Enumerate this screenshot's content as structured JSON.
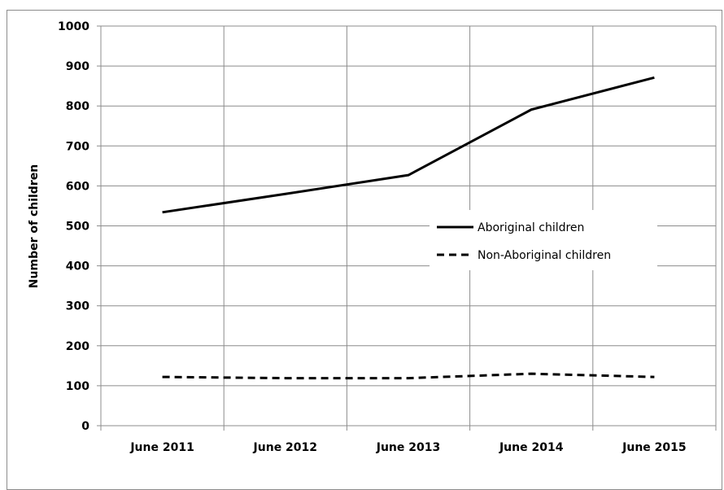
{
  "chart_data": {
    "type": "line",
    "title": "",
    "xlabel": "",
    "ylabel": "Number of children",
    "categories": [
      "June 2011",
      "June 2012",
      "June 2013",
      "June 2014",
      "June 2015"
    ],
    "ylim": [
      0,
      1000
    ],
    "yticks": [
      0,
      100,
      200,
      300,
      400,
      500,
      600,
      700,
      800,
      900,
      1000
    ],
    "grid": true,
    "legend_position": "right",
    "series": [
      {
        "name": "Aboriginal children",
        "values": [
          534,
          580,
          627,
          791,
          871
        ],
        "style": "solid",
        "color": "#000000"
      },
      {
        "name": "Non-Aboriginal children",
        "values": [
          122,
          119,
          119,
          130,
          122
        ],
        "style": "dashed",
        "color": "#000000"
      }
    ]
  }
}
